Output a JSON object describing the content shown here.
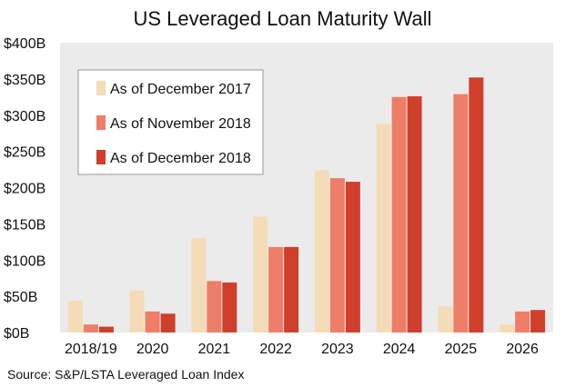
{
  "chart_data": {
    "type": "bar",
    "title": "US Leveraged Loan Maturity Wall",
    "categories": [
      "2018/19",
      "2020",
      "2021",
      "2022",
      "2023",
      "2024",
      "2025",
      "2026"
    ],
    "series": [
      {
        "name": "As of December 2017",
        "color": "#f5dcb8",
        "values": [
          44,
          58,
          130,
          160,
          224,
          288,
          36,
          11
        ]
      },
      {
        "name": "As of November 2018",
        "color": "#ee7e67",
        "values": [
          11,
          29,
          71,
          118,
          213,
          325,
          329,
          29
        ]
      },
      {
        "name": "As of December 2018",
        "color": "#cf3f2c",
        "values": [
          8,
          26,
          69,
          118,
          208,
          326,
          352,
          31
        ]
      }
    ],
    "y_ticks": [
      "$0B",
      "$50B",
      "$100B",
      "$150B",
      "$200B",
      "$250B",
      "$300B",
      "$350B",
      "$400B"
    ],
    "ylim": [
      0,
      400
    ],
    "xlabel": "",
    "ylabel": "",
    "grid": false,
    "legend_position": "top-left",
    "plot_background": "#ebebeb",
    "source": "Source: S&P/LSTA Leveraged Loan Index"
  }
}
